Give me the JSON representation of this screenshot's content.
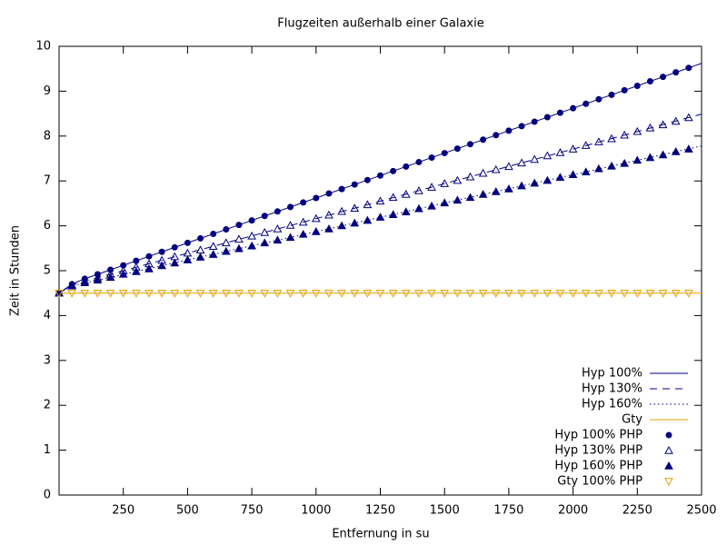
{
  "chart_data": {
    "type": "line",
    "title": "Flugzeiten außerhalb einer Galaxie",
    "x_label": "Entfernung in su",
    "y_label": "Zeit in Stunden",
    "xlim": [
      0,
      2500
    ],
    "xticks": [
      250,
      500,
      750,
      1000,
      1250,
      1500,
      1750,
      2000,
      2250,
      2500
    ],
    "ylim": [
      0,
      10
    ],
    "yticks": [
      0,
      1,
      2,
      3,
      4,
      5,
      6,
      7,
      8,
      9,
      10
    ],
    "legend": "bottom-right",
    "x": [
      0,
      50,
      100,
      150,
      200,
      250,
      300,
      350,
      400,
      450,
      500,
      550,
      600,
      650,
      700,
      750,
      800,
      850,
      900,
      950,
      1000,
      1050,
      1100,
      1150,
      1200,
      1250,
      1300,
      1350,
      1400,
      1450,
      1500,
      1550,
      1600,
      1650,
      1700,
      1750,
      1800,
      1850,
      1900,
      1950,
      2000,
      2050,
      2100,
      2150,
      2200,
      2250,
      2300,
      2350,
      2400,
      2450
    ],
    "series": [
      {
        "name": "Hyp 100%",
        "color": "#000080",
        "style": "line",
        "dash": "solid",
        "x": [
          0,
          50,
          100,
          200,
          500,
          1000,
          1500,
          2000,
          2500
        ],
        "values": [
          4.5,
          4.7,
          4.82,
          5.02,
          5.62,
          6.62,
          7.62,
          8.62,
          9.62
        ]
      },
      {
        "name": "Hyp 130%",
        "color": "#000080",
        "style": "line",
        "dash": "dashed",
        "x": [
          0,
          50,
          100,
          200,
          500,
          1000,
          1500,
          2000,
          2500
        ],
        "values": [
          4.5,
          4.68,
          4.77,
          4.92,
          5.39,
          6.16,
          6.94,
          7.71,
          8.49
        ]
      },
      {
        "name": "Hyp 160%",
        "color": "#000080",
        "style": "line",
        "dash": "dotted",
        "x": [
          0,
          50,
          100,
          200,
          500,
          1000,
          1500,
          2000,
          2500
        ],
        "values": [
          4.5,
          4.66,
          4.73,
          4.85,
          5.24,
          5.87,
          6.51,
          7.14,
          7.78
        ]
      },
      {
        "name": "Gty",
        "color": "#e6a000",
        "style": "line",
        "dash": "solid",
        "x": [
          0,
          2500
        ],
        "values": [
          4.5,
          4.5
        ]
      },
      {
        "name": "Hyp 100% PHP",
        "color": "#000080",
        "style": "points",
        "marker": "circle",
        "values": [
          4.5,
          4.7,
          4.82,
          4.92,
          5.02,
          5.12,
          5.22,
          5.32,
          5.42,
          5.52,
          5.62,
          5.72,
          5.82,
          5.92,
          6.02,
          6.12,
          6.22,
          6.32,
          6.42,
          6.52,
          6.62,
          6.72,
          6.82,
          6.92,
          7.02,
          7.12,
          7.22,
          7.32,
          7.42,
          7.52,
          7.62,
          7.72,
          7.82,
          7.92,
          8.02,
          8.12,
          8.22,
          8.32,
          8.42,
          8.52,
          8.62,
          8.72,
          8.82,
          8.92,
          9.02,
          9.12,
          9.22,
          9.32,
          9.42,
          9.52
        ]
      },
      {
        "name": "Hyp 130% PHP",
        "color": "#000080",
        "style": "points",
        "marker": "triangle-open",
        "values": [
          4.5,
          4.68,
          4.77,
          4.84,
          4.92,
          5.0,
          5.08,
          5.15,
          5.23,
          5.31,
          5.39,
          5.46,
          5.54,
          5.62,
          5.7,
          5.77,
          5.85,
          5.93,
          6.01,
          6.08,
          6.16,
          6.24,
          6.32,
          6.39,
          6.47,
          6.55,
          6.63,
          6.7,
          6.78,
          6.86,
          6.94,
          7.01,
          7.09,
          7.17,
          7.25,
          7.32,
          7.4,
          7.48,
          7.56,
          7.63,
          7.71,
          7.79,
          7.87,
          7.94,
          8.02,
          8.1,
          8.18,
          8.25,
          8.33,
          8.41
        ]
      },
      {
        "name": "Hyp 160% PHP",
        "color": "#000080",
        "style": "points",
        "marker": "triangle",
        "values": [
          4.5,
          4.66,
          4.73,
          4.79,
          4.85,
          4.92,
          4.98,
          5.04,
          5.11,
          5.17,
          5.24,
          5.3,
          5.36,
          5.43,
          5.49,
          5.55,
          5.62,
          5.68,
          5.74,
          5.81,
          5.87,
          5.93,
          6.0,
          6.06,
          6.12,
          6.19,
          6.25,
          6.31,
          6.38,
          6.44,
          6.51,
          6.57,
          6.63,
          6.7,
          6.76,
          6.82,
          6.89,
          6.95,
          7.01,
          7.08,
          7.14,
          7.2,
          7.27,
          7.33,
          7.39,
          7.46,
          7.52,
          7.58,
          7.65,
          7.71
        ]
      },
      {
        "name": "Gty 100% PHP",
        "color": "#e6a000",
        "style": "points",
        "marker": "triangle-down-open",
        "values": [
          4.5,
          4.5,
          4.5,
          4.5,
          4.5,
          4.5,
          4.5,
          4.5,
          4.5,
          4.5,
          4.5,
          4.5,
          4.5,
          4.5,
          4.5,
          4.5,
          4.5,
          4.5,
          4.5,
          4.5,
          4.5,
          4.5,
          4.5,
          4.5,
          4.5,
          4.5,
          4.5,
          4.5,
          4.5,
          4.5,
          4.5,
          4.5,
          4.5,
          4.5,
          4.5,
          4.5,
          4.5,
          4.5,
          4.5,
          4.5,
          4.5,
          4.5,
          4.5,
          4.5,
          4.5,
          4.5,
          4.5,
          4.5,
          4.5,
          4.5
        ]
      }
    ]
  }
}
